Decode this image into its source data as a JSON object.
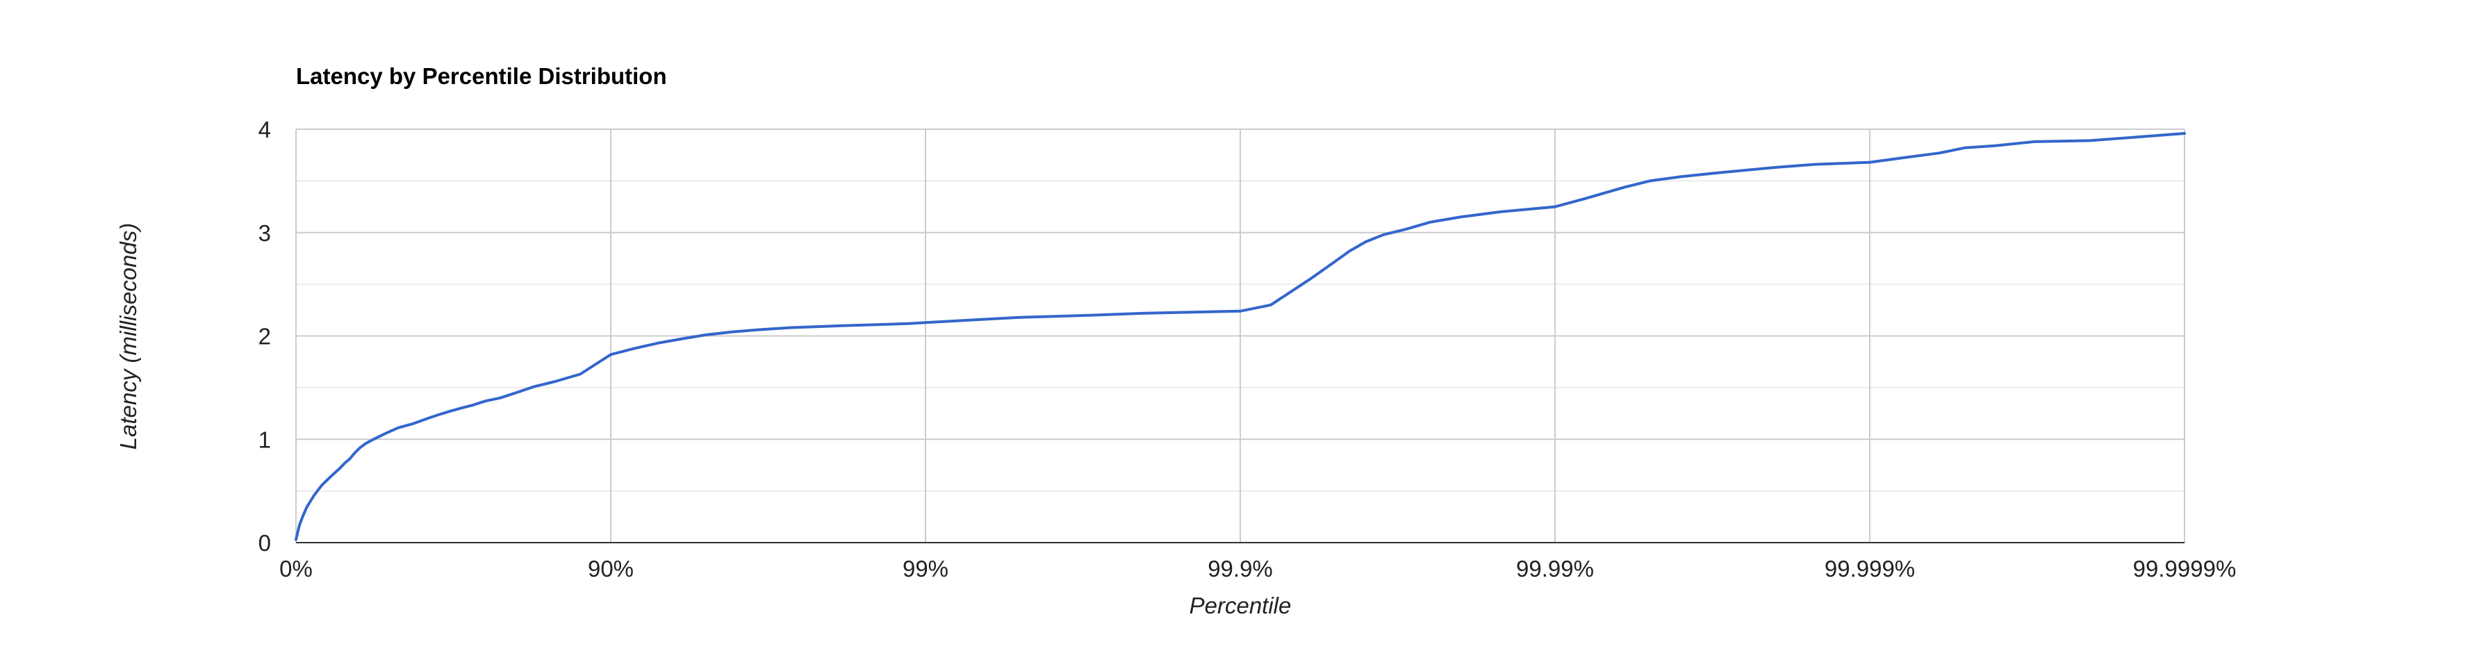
{
  "chart_data": {
    "type": "line",
    "title": "Latency by Percentile Distribution",
    "xlabel": "Percentile",
    "ylabel": "Latency (milliseconds)",
    "ylim": [
      0,
      4
    ],
    "y_ticks": [
      "0",
      "1",
      "2",
      "3",
      "4"
    ],
    "x_ticks": [
      "0%",
      "90%",
      "99%",
      "99.9%",
      "99.99%",
      "99.999%",
      "99.9999%"
    ],
    "x_scale": "log of 1/(1-percentile), one decade per major tick",
    "grid": true,
    "legend": "none",
    "series": [
      {
        "color": "#3366cc",
        "x": [
          0,
          2.5,
          5,
          7.5,
          10,
          12.5,
          15,
          17.5,
          20,
          22.5,
          25,
          27.5,
          30,
          32.5,
          35,
          37.5,
          40,
          42.5,
          45,
          47.5,
          50,
          52.5,
          55,
          57.5,
          60,
          62.5,
          65,
          67.5,
          70,
          72.5,
          75,
          77.5,
          80,
          82.5,
          85,
          87.5,
          90,
          91.6,
          92.9,
          94.0,
          95.0,
          95.9,
          96.6,
          97.3,
          97.8,
          98.2,
          98.6,
          98.88,
          99,
          99.5,
          99.7,
          99.8,
          99.9,
          99.92,
          99.94,
          99.95,
          99.955,
          99.96,
          99.965,
          99.97,
          99.975,
          99.98,
          99.985,
          99.99,
          99.992,
          99.994,
          99.995,
          99.996,
          99.997,
          99.998,
          99.9985,
          99.999,
          99.9992,
          99.9994,
          99.9995,
          99.9996,
          99.9997,
          99.9998,
          99.9999
        ],
        "y": [
          0.03,
          0.17,
          0.26,
          0.34,
          0.4,
          0.46,
          0.51,
          0.56,
          0.6,
          0.64,
          0.68,
          0.72,
          0.77,
          0.81,
          0.87,
          0.92,
          0.96,
          0.99,
          1.02,
          1.05,
          1.08,
          1.11,
          1.13,
          1.15,
          1.18,
          1.21,
          1.24,
          1.27,
          1.3,
          1.33,
          1.37,
          1.4,
          1.45,
          1.51,
          1.56,
          1.63,
          1.82,
          1.88,
          1.93,
          1.97,
          2.01,
          2.04,
          2.06,
          2.08,
          2.09,
          2.1,
          2.11,
          2.12,
          2.13,
          2.18,
          2.2,
          2.22,
          2.24,
          2.3,
          2.55,
          2.72,
          2.82,
          2.91,
          2.98,
          3.03,
          3.1,
          3.15,
          3.2,
          3.25,
          3.33,
          3.44,
          3.5,
          3.54,
          3.58,
          3.63,
          3.66,
          3.68,
          3.72,
          3.77,
          3.82,
          3.84,
          3.88,
          3.89,
          3.96
        ]
      }
    ]
  }
}
